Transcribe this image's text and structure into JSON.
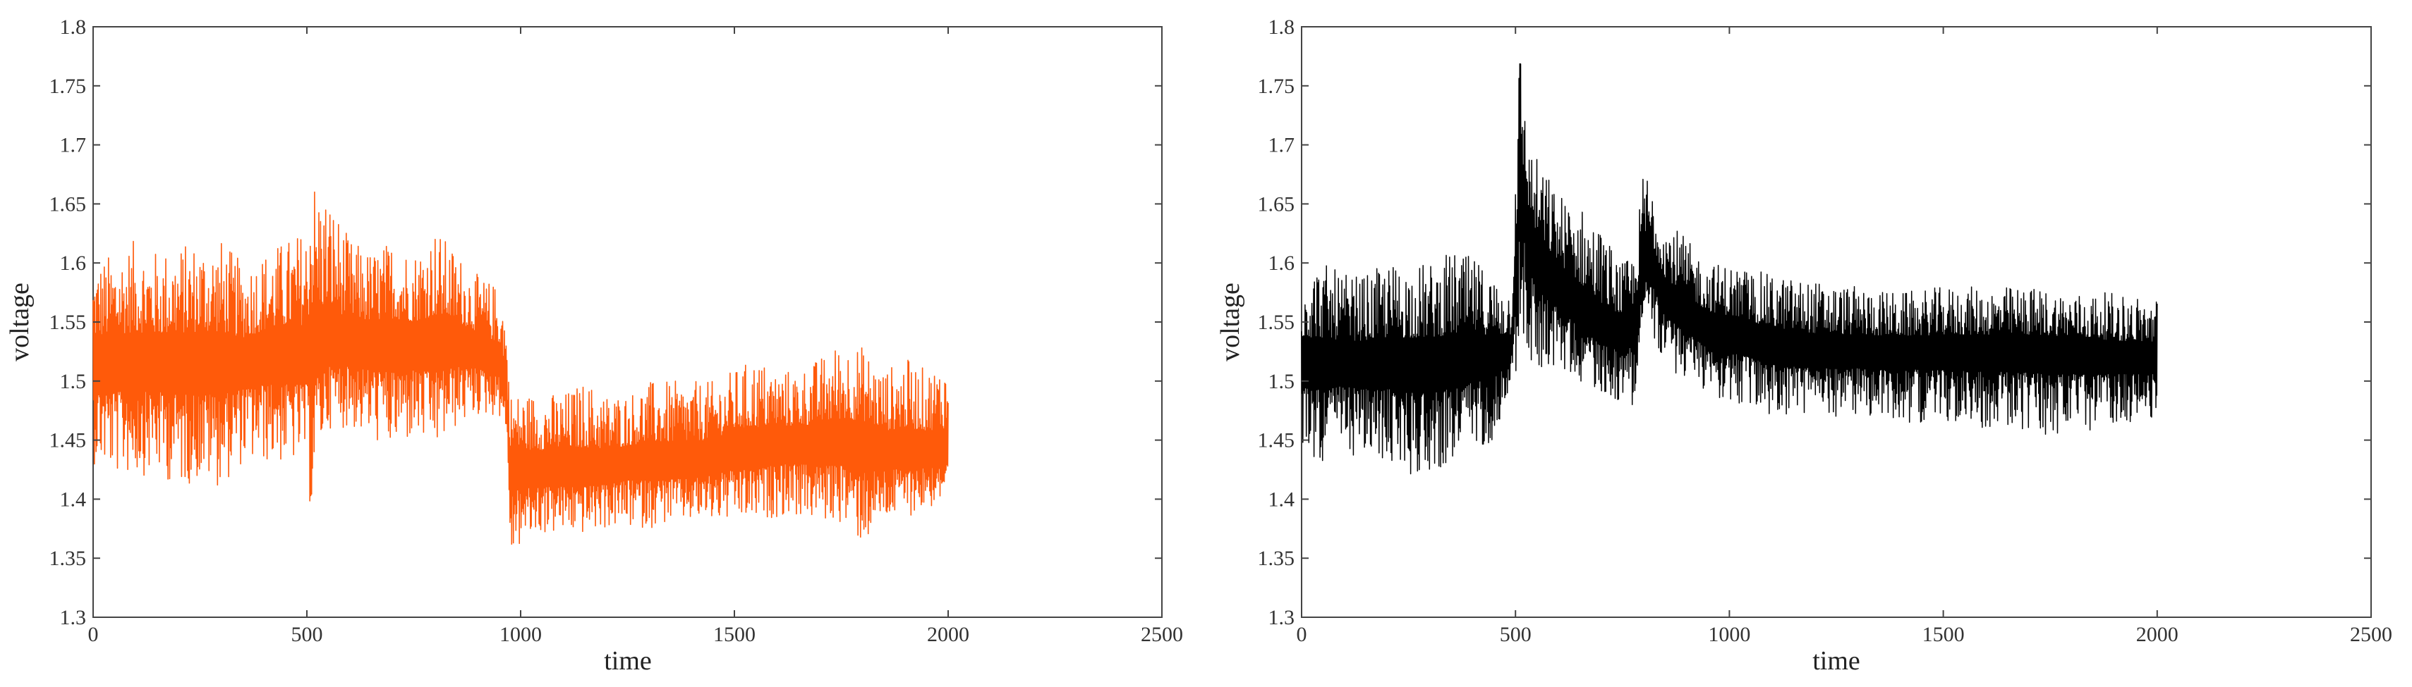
{
  "chart_data": [
    {
      "type": "line",
      "xlabel": "time",
      "ylabel": "voltage",
      "xlim": [
        0,
        2500
      ],
      "ylim": [
        1.3,
        1.8
      ],
      "xticks": [
        "0",
        "500",
        "1000",
        "1500",
        "2000",
        "2500"
      ],
      "yticks": [
        "1.3",
        "1.35",
        "1.4",
        "1.45",
        "1.5",
        "1.55",
        "1.6",
        "1.65",
        "1.7",
        "1.75",
        "1.8"
      ],
      "grid": false,
      "colors": {
        "series": "#FF5A0A"
      },
      "series": [
        {
          "x": [
            0,
            50,
            100,
            150,
            200,
            250,
            300,
            350,
            400,
            450,
            500,
            510,
            520,
            550,
            600,
            650,
            700,
            750,
            800,
            850,
            900,
            950,
            965,
            975,
            1000,
            1050,
            1100,
            1150,
            1200,
            1250,
            1300,
            1350,
            1400,
            1450,
            1500,
            1550,
            1600,
            1650,
            1700,
            1750,
            1800,
            1850,
            1900,
            1950,
            2000
          ],
          "mean": [
            1.515,
            1.515,
            1.515,
            1.515,
            1.515,
            1.515,
            1.515,
            1.515,
            1.52,
            1.52,
            1.52,
            1.52,
            1.525,
            1.53,
            1.53,
            1.53,
            1.53,
            1.53,
            1.53,
            1.53,
            1.525,
            1.515,
            1.5,
            1.43,
            1.425,
            1.425,
            1.425,
            1.425,
            1.425,
            1.43,
            1.43,
            1.43,
            1.43,
            1.435,
            1.44,
            1.44,
            1.445,
            1.445,
            1.445,
            1.445,
            1.445,
            1.44,
            1.44,
            1.44,
            1.44
          ],
          "max": [
            1.6,
            1.61,
            1.62,
            1.61,
            1.615,
            1.62,
            1.62,
            1.6,
            1.61,
            1.62,
            1.63,
            1.7,
            1.67,
            1.66,
            1.62,
            1.61,
            1.62,
            1.61,
            1.63,
            1.61,
            1.59,
            1.58,
            1.56,
            1.49,
            1.49,
            1.49,
            1.49,
            1.5,
            1.49,
            1.49,
            1.5,
            1.5,
            1.5,
            1.5,
            1.51,
            1.52,
            1.51,
            1.51,
            1.52,
            1.535,
            1.53,
            1.51,
            1.52,
            1.51,
            1.52
          ],
          "min": [
            1.43,
            1.42,
            1.42,
            1.42,
            1.41,
            1.415,
            1.41,
            1.43,
            1.43,
            1.43,
            1.43,
            1.38,
            1.43,
            1.46,
            1.46,
            1.45,
            1.44,
            1.45,
            1.44,
            1.46,
            1.47,
            1.47,
            1.46,
            1.345,
            1.36,
            1.37,
            1.37,
            1.37,
            1.375,
            1.375,
            1.375,
            1.38,
            1.38,
            1.38,
            1.38,
            1.38,
            1.385,
            1.385,
            1.38,
            1.38,
            1.36,
            1.38,
            1.385,
            1.39,
            1.4
          ]
        }
      ]
    },
    {
      "type": "line",
      "xlabel": "time",
      "ylabel": "voltage",
      "xlim": [
        0,
        2500
      ],
      "ylim": [
        1.3,
        1.8
      ],
      "xticks": [
        "0",
        "500",
        "1000",
        "1500",
        "2000",
        "2500"
      ],
      "yticks": [
        "1.3",
        "1.35",
        "1.4",
        "1.45",
        "1.5",
        "1.55",
        "1.6",
        "1.65",
        "1.7",
        "1.75",
        "1.8"
      ],
      "grid": false,
      "colors": {
        "series": "#000000"
      },
      "series": [
        {
          "x": [
            0,
            50,
            100,
            150,
            200,
            250,
            300,
            350,
            400,
            450,
            490,
            500,
            510,
            520,
            530,
            550,
            600,
            650,
            700,
            750,
            780,
            800,
            820,
            850,
            900,
            950,
            1000,
            1100,
            1200,
            1300,
            1400,
            1500,
            1600,
            1700,
            1800,
            1900,
            2000
          ],
          "mean": [
            1.515,
            1.515,
            1.515,
            1.515,
            1.515,
            1.515,
            1.515,
            1.515,
            1.52,
            1.52,
            1.525,
            1.58,
            1.66,
            1.65,
            1.63,
            1.6,
            1.58,
            1.56,
            1.545,
            1.54,
            1.55,
            1.6,
            1.595,
            1.57,
            1.555,
            1.545,
            1.54,
            1.53,
            1.525,
            1.525,
            1.525,
            1.525,
            1.525,
            1.525,
            1.525,
            1.52,
            1.52
          ],
          "max": [
            1.6,
            1.6,
            1.59,
            1.59,
            1.6,
            1.6,
            1.6,
            1.61,
            1.605,
            1.59,
            1.58,
            1.7,
            1.79,
            1.75,
            1.7,
            1.69,
            1.66,
            1.65,
            1.63,
            1.6,
            1.61,
            1.685,
            1.67,
            1.64,
            1.62,
            1.6,
            1.6,
            1.59,
            1.585,
            1.58,
            1.575,
            1.58,
            1.58,
            1.58,
            1.575,
            1.575,
            1.57
          ],
          "min": [
            1.44,
            1.43,
            1.44,
            1.43,
            1.43,
            1.42,
            1.42,
            1.43,
            1.44,
            1.45,
            1.5,
            1.5,
            1.53,
            1.53,
            1.5,
            1.51,
            1.51,
            1.5,
            1.49,
            1.48,
            1.48,
            1.55,
            1.54,
            1.51,
            1.5,
            1.49,
            1.48,
            1.47,
            1.47,
            1.47,
            1.465,
            1.465,
            1.46,
            1.455,
            1.45,
            1.465,
            1.465
          ]
        }
      ]
    }
  ]
}
